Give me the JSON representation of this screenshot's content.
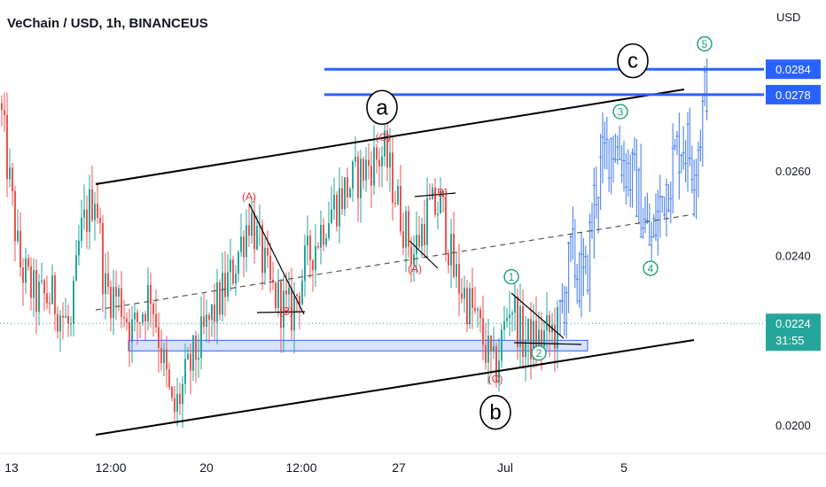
{
  "header": {
    "symbol_title": "VeChain / USD, 1h, BINANCEUS",
    "currency": "USD"
  },
  "colors": {
    "up": "#26a69a",
    "down": "#ef5350",
    "projection": "#5b8def",
    "level_line": "#2962ff",
    "price_tag": "#2962ff",
    "current_tag": "#26a69a",
    "wave_red": "#e0323e",
    "wave_green": "#1b9e77",
    "support_box": "#2962ff"
  },
  "chart_data": {
    "type": "candlestick",
    "title": "VeChain / USD, 1h, BINANCEUS",
    "ylabel": "USD",
    "ylim": [
      0.0196,
      0.0305
    ],
    "y_ticks": [
      "0.0260",
      "0.0240",
      "0.0200"
    ],
    "x_ticks": [
      "13",
      "12:00",
      "20",
      "12:00",
      "27",
      "Jul",
      "5"
    ],
    "levels": [
      {
        "price": 0.0284,
        "label": "0.0284"
      },
      {
        "price": 0.0278,
        "label": "0.0278"
      }
    ],
    "current_price": {
      "label": "0.0224",
      "countdown": "31:55",
      "price": 0.0224
    },
    "support_zone": {
      "from": 0.02175,
      "to": 0.022
    },
    "price_path": [
      {
        "t": 0,
        "p": 0.0276
      },
      {
        "t": 8,
        "p": 0.0262
      },
      {
        "t": 22,
        "p": 0.0238
      },
      {
        "t": 40,
        "p": 0.023
      },
      {
        "t": 60,
        "p": 0.023
      },
      {
        "t": 80,
        "p": 0.0222
      },
      {
        "t": 90,
        "p": 0.0244
      },
      {
        "t": 108,
        "p": 0.0256
      },
      {
        "t": 118,
        "p": 0.0232
      },
      {
        "t": 135,
        "p": 0.023
      },
      {
        "t": 150,
        "p": 0.0222
      },
      {
        "t": 170,
        "p": 0.0232
      },
      {
        "t": 195,
        "p": 0.0202
      },
      {
        "t": 215,
        "p": 0.0214
      },
      {
        "t": 240,
        "p": 0.0226
      },
      {
        "t": 262,
        "p": 0.0236
      },
      {
        "t": 282,
        "p": 0.025
      },
      {
        "t": 305,
        "p": 0.0232
      },
      {
        "t": 328,
        "p": 0.0226
      },
      {
        "t": 345,
        "p": 0.0238
      },
      {
        "t": 370,
        "p": 0.025
      },
      {
        "t": 392,
        "p": 0.0256
      },
      {
        "t": 418,
        "p": 0.0262
      },
      {
        "t": 434,
        "p": 0.0264
      },
      {
        "t": 452,
        "p": 0.025
      },
      {
        "t": 466,
        "p": 0.024
      },
      {
        "t": 482,
        "p": 0.025
      },
      {
        "t": 498,
        "p": 0.0252
      },
      {
        "t": 512,
        "p": 0.0236
      },
      {
        "t": 535,
        "p": 0.0226
      },
      {
        "t": 558,
        "p": 0.0212
      },
      {
        "t": 566,
        "p": 0.022
      },
      {
        "t": 576,
        "p": 0.023
      },
      {
        "t": 590,
        "p": 0.022
      },
      {
        "t": 608,
        "p": 0.022
      },
      {
        "t": 630,
        "p": 0.0223
      }
    ],
    "projection_path": [
      {
        "t": 630,
        "p": 0.0223
      },
      {
        "t": 645,
        "p": 0.024
      },
      {
        "t": 660,
        "p": 0.0232
      },
      {
        "t": 672,
        "p": 0.0256
      },
      {
        "t": 690,
        "p": 0.0268
      },
      {
        "t": 705,
        "p": 0.0262
      },
      {
        "t": 718,
        "p": 0.0256
      },
      {
        "t": 734,
        "p": 0.0242
      },
      {
        "t": 750,
        "p": 0.0256
      },
      {
        "t": 770,
        "p": 0.0268
      },
      {
        "t": 785,
        "p": 0.0262
      },
      {
        "t": 798,
        "p": 0.0282
      }
    ],
    "wave_labels": [
      {
        "text": "(A)",
        "t": 281,
        "p": 0.0254,
        "color": "red"
      },
      {
        "text": "(B)",
        "t": 323,
        "p": 0.0227,
        "color": "red"
      },
      {
        "text": "(C)",
        "t": 432,
        "p": 0.0268,
        "color": "red"
      },
      {
        "text": "(B)",
        "t": 497,
        "p": 0.0255,
        "color": "red"
      },
      {
        "text": "(A)",
        "t": 468,
        "p": 0.0237,
        "color": "red"
      },
      {
        "text": "(C)",
        "t": 559,
        "p": 0.0211,
        "color": "red"
      },
      {
        "text": "1",
        "t": 577,
        "p": 0.0235,
        "color": "green",
        "circled": true
      },
      {
        "text": "2",
        "t": 608,
        "p": 0.0217,
        "color": "green",
        "circled": true
      },
      {
        "text": "3",
        "t": 700,
        "p": 0.0274,
        "color": "green",
        "circled": true
      },
      {
        "text": "4",
        "t": 734,
        "p": 0.0237,
        "color": "green",
        "circled": true
      },
      {
        "text": "5",
        "t": 795,
        "p": 0.029,
        "color": "green",
        "circled": true
      }
    ],
    "big_labels": [
      {
        "text": "a",
        "t": 431,
        "p": 0.0275
      },
      {
        "text": "b",
        "t": 559,
        "p": 0.0203
      },
      {
        "text": "c",
        "t": 714,
        "p": 0.0286
      }
    ]
  }
}
